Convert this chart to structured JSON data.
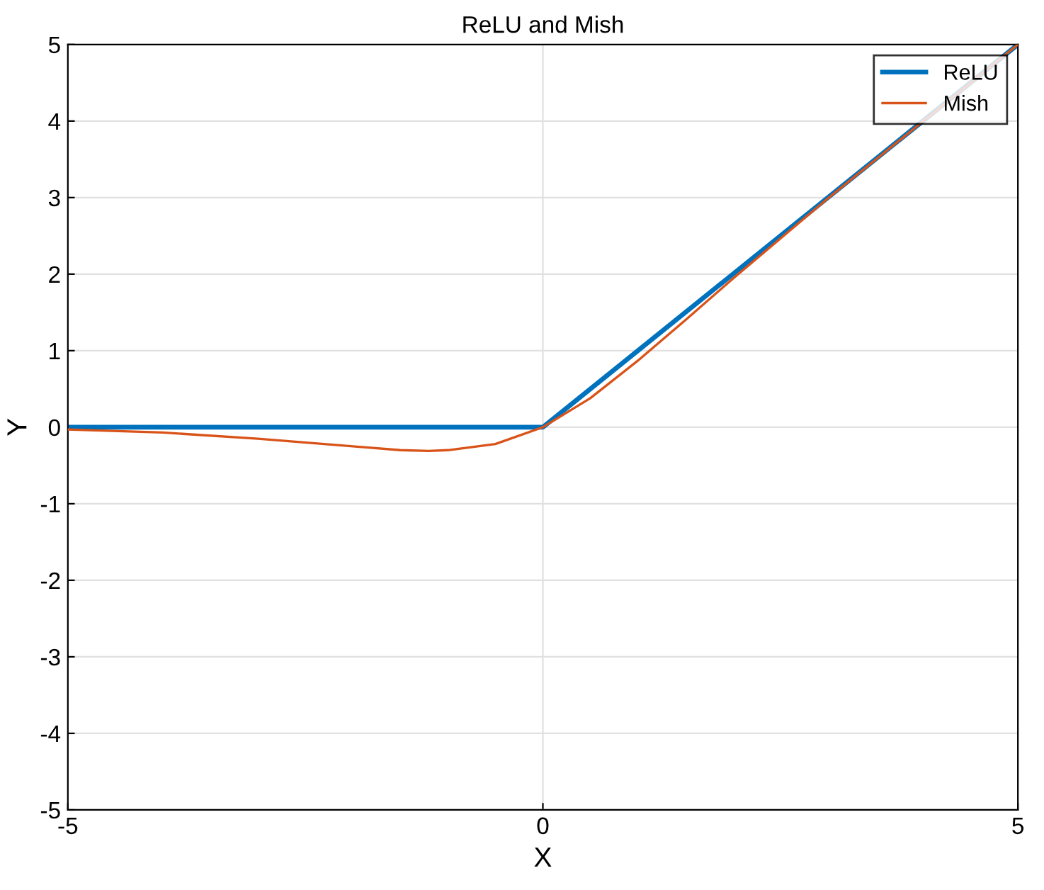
{
  "chart_data": {
    "type": "line",
    "title": "ReLU and Mish",
    "xlabel": "X",
    "ylabel": "Y",
    "series": [
      {
        "name": "ReLU",
        "color": "#0072bd",
        "x": [
          -5,
          0,
          5
        ],
        "values": [
          0,
          0,
          5
        ]
      },
      {
        "name": "Mish",
        "color": "#d95319",
        "x": [
          -5,
          -4,
          -3,
          -2,
          -1.5,
          -1.2,
          -1,
          -0.5,
          0,
          0.5,
          1,
          1.5,
          2,
          3,
          5
        ],
        "values": [
          -0.03,
          -0.07,
          -0.15,
          -0.25,
          -0.3,
          -0.31,
          -0.3,
          -0.22,
          0,
          0.38,
          0.87,
          1.4,
          1.94,
          2.99,
          5.0
        ]
      }
    ],
    "xlim": [
      -5,
      5
    ],
    "xticks": [
      -5,
      0,
      5
    ],
    "ylim": [
      -5,
      5
    ],
    "yticks": [
      -5,
      -4,
      -3,
      -2,
      -1,
      0,
      1,
      2,
      3,
      4,
      5
    ],
    "grid": true,
    "legend": "top right",
    "marker": "none",
    "line_style": "solid"
  }
}
